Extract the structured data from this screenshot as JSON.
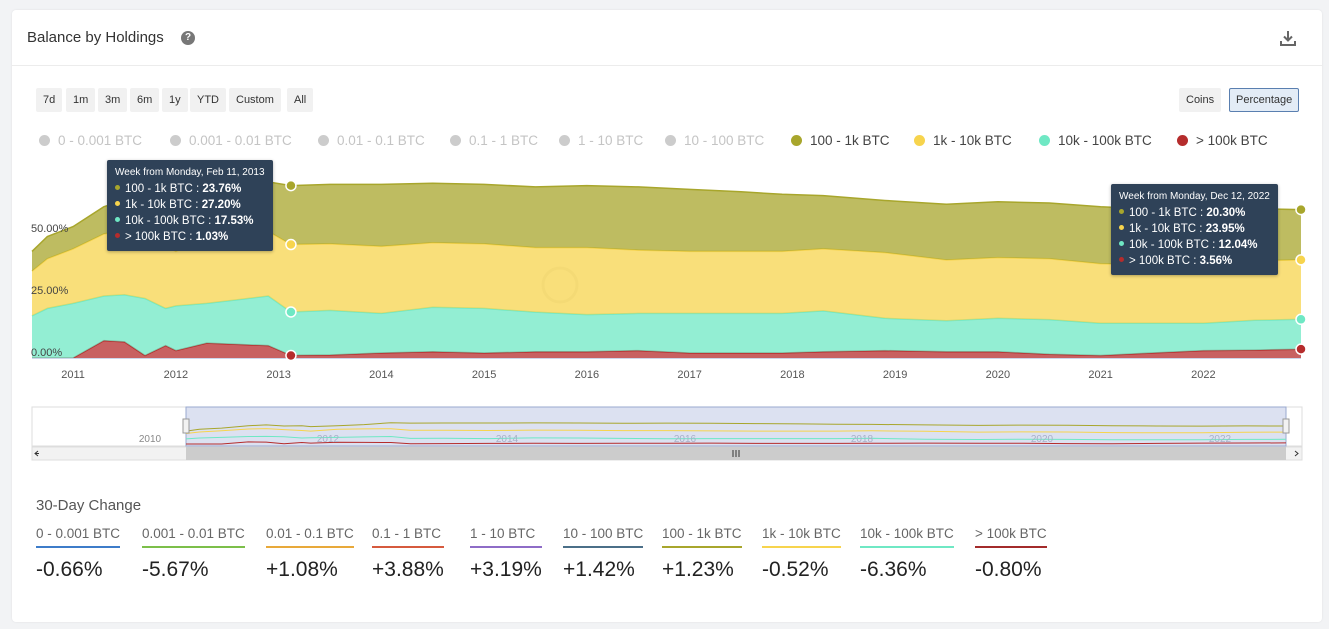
{
  "header": {
    "title": "Balance by Holdings"
  },
  "range_buttons": [
    "7d",
    "1m",
    "3m",
    "6m",
    "1y",
    "YTD",
    "Custom",
    "All"
  ],
  "mode_buttons": [
    {
      "label": "Coins",
      "active": false
    },
    {
      "label": "Percentage",
      "active": true
    }
  ],
  "legend": [
    {
      "label": "0 - 0.001 BTC",
      "color": "#cccccc",
      "active": false
    },
    {
      "label": "0.001 - 0.01 BTC",
      "color": "#cccccc",
      "active": false
    },
    {
      "label": "0.01 - 0.1 BTC",
      "color": "#cccccc",
      "active": false
    },
    {
      "label": "0.1 - 1 BTC",
      "color": "#cccccc",
      "active": false
    },
    {
      "label": "1 - 10 BTC",
      "color": "#cccccc",
      "active": false
    },
    {
      "label": "10 - 100 BTC",
      "color": "#cccccc",
      "active": false
    },
    {
      "label": "100 - 1k BTC",
      "color": "#a8a62c",
      "active": true
    },
    {
      "label": "1k - 10k BTC",
      "color": "#f7d44d",
      "active": true
    },
    {
      "label": "10k - 100k BTC",
      "color": "#6fe8c4",
      "active": true
    },
    {
      "label": "> 100k BTC",
      "color": "#b52c2c",
      "active": true
    }
  ],
  "chart_data": {
    "type": "area",
    "stacked": true,
    "x_unit": "year",
    "xlim": [
      2010.6,
      2022.95
    ],
    "ylim": [
      0,
      100
    ],
    "y_ticks": [
      {
        "value": 0,
        "label": "0.00%"
      },
      {
        "value": 25,
        "label": "25.00%"
      },
      {
        "value": 50,
        "label": "50.00%"
      }
    ],
    "x_ticks": [
      "2011",
      "2012",
      "2013",
      "2014",
      "2015",
      "2016",
      "2017",
      "2018",
      "2019",
      "2020",
      "2021",
      "2022"
    ],
    "x": [
      2010.6,
      2010.75,
      2011.0,
      2011.3,
      2011.5,
      2011.7,
      2011.9,
      2012.0,
      2012.3,
      2012.6,
      2012.9,
      2013.12,
      2013.5,
      2014.0,
      2014.5,
      2015.0,
      2015.5,
      2016.0,
      2016.5,
      2017.0,
      2017.5,
      2017.9,
      2018.3,
      2018.9,
      2019.5,
      2020.0,
      2020.5,
      2021.0,
      2021.5,
      2022.0,
      2022.5,
      2022.95
    ],
    "series": [
      {
        "name": "> 100k BTC",
        "color": "#b52c2c",
        "values": [
          0.0,
          0.0,
          0.0,
          7.0,
          6.5,
          1.0,
          5.0,
          3.0,
          6.0,
          5.5,
          5.0,
          1.03,
          1.2,
          2.0,
          2.5,
          2.0,
          2.5,
          2.5,
          3.0,
          2.0,
          2.0,
          2.0,
          2.5,
          3.0,
          2.5,
          2.5,
          1.5,
          1.0,
          2.0,
          3.0,
          3.2,
          3.56
        ]
      },
      {
        "name": "10k - 100k BTC",
        "color": "#6fe8c4",
        "values": [
          17.0,
          20.0,
          22.0,
          18.0,
          19.0,
          23.0,
          15.0,
          18.0,
          16.0,
          18.0,
          20.0,
          17.53,
          18.0,
          16.0,
          18.0,
          18.0,
          16.0,
          15.0,
          15.0,
          16.0,
          16.0,
          16.0,
          16.5,
          13.0,
          12.5,
          13.5,
          14.0,
          13.0,
          12.0,
          11.0,
          12.0,
          12.04
        ]
      },
      {
        "name": "1k - 10k BTC",
        "color": "#f7d44d",
        "values": [
          18.0,
          20.0,
          22.0,
          25.0,
          26.0,
          24.0,
          25.0,
          22.0,
          27.0,
          27.0,
          26.0,
          27.2,
          26.8,
          27.0,
          26.0,
          26.0,
          26.0,
          27.0,
          25.5,
          25.0,
          25.0,
          25.0,
          25.0,
          26.5,
          24.5,
          24.5,
          24.5,
          24.0,
          23.5,
          23.5,
          24.0,
          23.95
        ]
      },
      {
        "name": "100 - 1k BTC",
        "color": "#a8a62c",
        "values": [
          8.0,
          9.0,
          9.0,
          11.0,
          12.0,
          12.0,
          16.0,
          15.0,
          12.0,
          14.0,
          20.0,
          23.76,
          24.0,
          25.0,
          24.0,
          24.0,
          24.5,
          25.0,
          25.5,
          25.0,
          24.0,
          23.0,
          21.5,
          21.0,
          22.5,
          22.5,
          22.5,
          23.0,
          22.5,
          22.0,
          21.0,
          20.3
        ]
      }
    ],
    "tooltips": [
      {
        "title": "Week from Monday, Feb 11, 2013",
        "x": 2013.12,
        "rows": [
          {
            "name": "100 - 1k BTC",
            "value": "23.76%",
            "color": "#a8a62c"
          },
          {
            "name": "1k - 10k BTC",
            "value": "27.20%",
            "color": "#f7d44d"
          },
          {
            "name": "10k - 100k BTC",
            "value": "17.53%",
            "color": "#6fe8c4"
          },
          {
            "name": "> 100k BTC",
            "value": "1.03%",
            "color": "#b52c2c"
          }
        ]
      },
      {
        "title": "Week from Monday, Dec 12, 2022",
        "x": 2022.95,
        "rows": [
          {
            "name": "100 - 1k BTC",
            "value": "20.30%",
            "color": "#a8a62c"
          },
          {
            "name": "1k - 10k BTC",
            "value": "23.95%",
            "color": "#f7d44d"
          },
          {
            "name": "10k - 100k BTC",
            "value": "12.04%",
            "color": "#6fe8c4"
          },
          {
            "name": "> 100k BTC",
            "value": "3.56%",
            "color": "#b52c2c"
          }
        ]
      }
    ],
    "navigator": {
      "labels": [
        "2010",
        "2012",
        "2014",
        "2016",
        "2018",
        "2020",
        "2022"
      ]
    }
  },
  "change": {
    "title": "30-Day Change",
    "items": [
      {
        "label": "0 - 0.001 BTC",
        "value": "-0.66%",
        "color": "#3d7cc9"
      },
      {
        "label": "0.001 - 0.01 BTC",
        "value": "-5.67%",
        "color": "#7cbf4a"
      },
      {
        "label": "0.01 - 0.1 BTC",
        "value": "+1.08%",
        "color": "#e8a93a"
      },
      {
        "label": "0.1 - 1 BTC",
        "value": "+3.88%",
        "color": "#d65a3e"
      },
      {
        "label": "1 - 10 BTC",
        "value": "+3.19%",
        "color": "#8e6cc7"
      },
      {
        "label": "10 - 100 BTC",
        "value": "+1.42%",
        "color": "#4b6f88"
      },
      {
        "label": "100 - 1k BTC",
        "value": "+1.23%",
        "color": "#a8a62c"
      },
      {
        "label": "1k - 10k BTC",
        "value": "-0.52%",
        "color": "#f7d44d"
      },
      {
        "label": "10k - 100k BTC",
        "value": "-6.36%",
        "color": "#6fe8c4"
      },
      {
        "label": "> 100k BTC",
        "value": "-0.80%",
        "color": "#a32b2b"
      }
    ]
  }
}
